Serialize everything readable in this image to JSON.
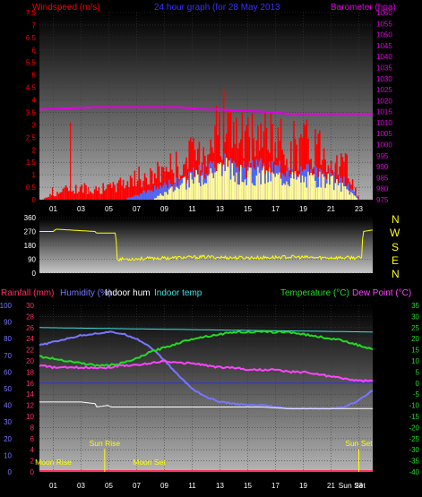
{
  "colors": {
    "wind": "#ff0000",
    "gust": "#ff0000",
    "windavg": "#4a6cff",
    "windlight": "#ffff99",
    "baro": "#e000e0",
    "dir": "#ffff00",
    "rain": "#ff3060",
    "humidity": "#7777ff",
    "indoorhum": "#ffffff",
    "indoortemp": "#40e0e0",
    "temperature": "#22dd22",
    "dewpoint": "#ff44ff",
    "ticklabel": "#ffffff",
    "title": "#3333ff",
    "moon": "#ffff00",
    "sun": "#ffff00"
  },
  "chart_data": [
    {
      "id": "wind",
      "type": "line",
      "title": "24 hour graph (for 28 May 2013",
      "ylabel": "Windspeed (m/s)",
      "y2label": "Barometer (hpa)",
      "ylim": [
        0,
        7.5
      ],
      "y2lim": [
        975,
        1060
      ],
      "xlim": [
        0,
        24
      ],
      "yticks": [
        "0",
        "0.5",
        "1",
        "1.5",
        "2",
        "2.5",
        "3",
        "3.5",
        "4",
        "4.5",
        "5",
        "5.5",
        "6",
        "6.5",
        "7",
        "7.5"
      ],
      "y2ticks": [
        "975",
        "980",
        "985",
        "990",
        "995",
        "1000",
        "1005",
        "1010",
        "1015",
        "1020",
        "1025",
        "1030",
        "1035",
        "1040",
        "1045",
        "1050",
        "1055",
        "1060"
      ],
      "xticks": [
        "01",
        "03",
        "05",
        "07",
        "09",
        "11",
        "13",
        "15",
        "17",
        "19",
        "21",
        "23"
      ],
      "series": [
        {
          "key": "baro",
          "axis": "y2",
          "x": [
            0,
            2,
            4,
            6,
            8,
            10,
            11,
            12,
            13,
            14,
            16,
            18,
            20,
            22,
            24
          ],
          "values": [
            1016,
            1016.5,
            1017,
            1017,
            1017,
            1017,
            1016.5,
            1016,
            1016,
            1015.5,
            1015,
            1014,
            1014,
            1014,
            1014
          ]
        },
        {
          "key": "gust",
          "axis": "y",
          "x": [
            0,
            2,
            4,
            5,
            6,
            7,
            8,
            9,
            10,
            11,
            12,
            13,
            14,
            15,
            16,
            17,
            18,
            19,
            20,
            21,
            22,
            23,
            24
          ],
          "values": [
            0,
            0.5,
            0.5,
            0.5,
            0.8,
            1.0,
            1.0,
            1.5,
            1.5,
            2.0,
            2.5,
            3.5,
            3.0,
            2.5,
            3.0,
            2.5,
            2.5,
            2.5,
            2.5,
            2.0,
            1.5,
            0,
            0
          ]
        },
        {
          "key": "windavg",
          "axis": "y",
          "x": [
            0,
            6,
            7,
            8,
            9,
            10,
            11,
            12,
            13,
            14,
            15,
            16,
            17,
            18,
            19,
            20,
            21,
            22,
            23,
            24
          ],
          "values": [
            0,
            0,
            0.2,
            0.4,
            0.6,
            0.8,
            1.0,
            1.2,
            1.5,
            1.3,
            1.2,
            1.3,
            1.2,
            1.2,
            1.1,
            1.2,
            1.0,
            0.7,
            0,
            0
          ]
        },
        {
          "key": "windlight",
          "axis": "y",
          "x": [
            0,
            8,
            9,
            10,
            11,
            12,
            13,
            14,
            15,
            16,
            17,
            18,
            19,
            20,
            21,
            22,
            23,
            24
          ],
          "values": [
            0,
            0,
            0.3,
            0.6,
            0.9,
            1.2,
            1.4,
            1.2,
            1.0,
            1.1,
            1.0,
            1.0,
            0.9,
            0.9,
            0.8,
            0.5,
            0,
            0
          ]
        }
      ],
      "right_letters": [
        "N",
        "W",
        "S",
        "E",
        "N"
      ]
    },
    {
      "id": "direction",
      "type": "line",
      "ylim": [
        0,
        360
      ],
      "xlim": [
        0,
        24
      ],
      "yticks": [
        "0",
        "90",
        "180",
        "270",
        "360"
      ],
      "series": [
        {
          "key": "dir",
          "x": [
            0,
            1,
            1.2,
            4,
            4.1,
            5.5,
            5.6,
            8,
            10,
            12,
            14,
            16,
            18,
            20,
            22,
            23.2,
            23.3,
            24
          ],
          "values": [
            270,
            270,
            285,
            270,
            260,
            260,
            90,
            95,
            100,
            105,
            100,
            100,
            105,
            100,
            100,
            100,
            270,
            280
          ]
        }
      ]
    },
    {
      "id": "temp",
      "type": "line",
      "labels": {
        "rain": "Rainfall (mm)",
        "humidity": "Humidity (%)",
        "indoorhum": "Indoor hum",
        "indoortemp": "Indoor temp",
        "temperature": "Temperature (°C)",
        "dewpoint": "Dew Point (°C)"
      },
      "ylim_hum": [
        0,
        100
      ],
      "ylim_rain": [
        0,
        30
      ],
      "ylim_temp": [
        -40,
        35
      ],
      "xlim": [
        0,
        24
      ],
      "humticks": [
        "0",
        "10",
        "20",
        "30",
        "40",
        "50",
        "60",
        "70",
        "80",
        "90",
        "100"
      ],
      "rainticks": [
        "0",
        "2",
        "4",
        "6",
        "8",
        "10",
        "12",
        "14",
        "16",
        "18",
        "20",
        "22",
        "24",
        "26",
        "28",
        "30"
      ],
      "tempticks": [
        "-40",
        "-35",
        "-30",
        "-25",
        "-20",
        "-15",
        "-10",
        "-5",
        "0",
        "5",
        "10",
        "15",
        "20",
        "25",
        "30",
        "35"
      ],
      "xticks": [
        "01",
        "03",
        "05",
        "07",
        "09",
        "11",
        "13",
        "15",
        "17",
        "19",
        "21",
        "23"
      ],
      "series": [
        {
          "key": "indoortemp",
          "axis": "temp",
          "x": [
            0,
            24
          ],
          "values": [
            25,
            23
          ]
        },
        {
          "key": "humidity",
          "axis": "hum",
          "x": [
            0,
            1,
            2,
            3,
            4,
            5,
            6,
            7,
            8,
            9,
            10,
            11,
            12,
            13,
            14,
            15,
            16,
            17,
            18,
            19,
            20,
            21,
            22,
            23,
            24
          ],
          "values": [
            76,
            78,
            80,
            82,
            83,
            84,
            83,
            80,
            75,
            67,
            58,
            50,
            45,
            42,
            41,
            40,
            40,
            39,
            38,
            38,
            38,
            38,
            39,
            43,
            49
          ]
        },
        {
          "key": "temperature",
          "axis": "temp",
          "x": [
            0,
            1,
            2,
            3,
            4,
            5,
            6,
            7,
            8,
            9,
            10,
            11,
            12,
            13,
            14,
            15,
            16,
            17,
            18,
            19,
            20,
            21,
            22,
            23,
            24
          ],
          "values": [
            12,
            11,
            10,
            9,
            8,
            8,
            9,
            11,
            14,
            16,
            18,
            20,
            21,
            22,
            23,
            23,
            23,
            23,
            23,
            22,
            21,
            20,
            19,
            17,
            15
          ]
        },
        {
          "key": "dewpoint",
          "axis": "temp",
          "x": [
            0,
            1,
            2,
            3,
            4,
            5,
            6,
            7,
            8,
            9,
            10,
            11,
            12,
            13,
            14,
            15,
            16,
            17,
            18,
            19,
            20,
            21,
            22,
            23,
            24
          ],
          "values": [
            8,
            7,
            7,
            7,
            7,
            7,
            8,
            8,
            9,
            10,
            9,
            9,
            8,
            7,
            7,
            6,
            6,
            6,
            5,
            5,
            4,
            3,
            2,
            1,
            1
          ]
        },
        {
          "key": "indoorhum",
          "axis": "hum",
          "x": [
            0,
            3,
            4,
            4.1,
            5,
            5.1,
            6,
            8,
            10,
            12,
            14,
            16,
            18,
            20,
            22,
            24
          ],
          "values": [
            42,
            42,
            41,
            39,
            40,
            39,
            39,
            39,
            39,
            39,
            39,
            39,
            38,
            38,
            38,
            38
          ]
        }
      ],
      "annotations": [
        {
          "text": "Moon Rise",
          "x": 1.0,
          "row": "low"
        },
        {
          "text": "Sun Rise",
          "x": 4.7,
          "row": "high"
        },
        {
          "text": "Moon Set",
          "x": 7.9,
          "row": "low"
        },
        {
          "text": "Sun Set",
          "x": 23.0,
          "row": "high"
        },
        {
          "text": "Sun Set",
          "x": 22.5,
          "row": "axis"
        }
      ]
    }
  ]
}
